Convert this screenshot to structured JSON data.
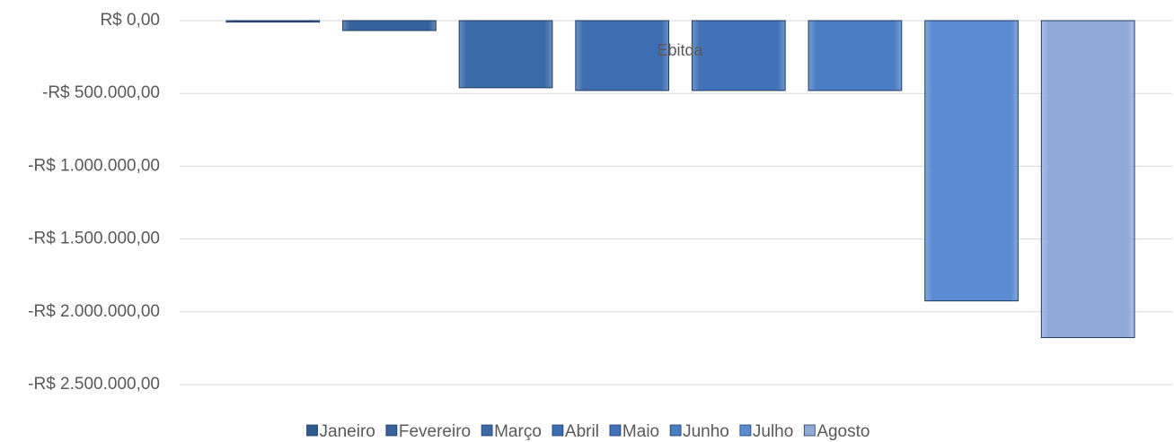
{
  "chart_data": {
    "type": "bar",
    "title": "Ebitda",
    "categories": [
      null
    ],
    "series": [
      {
        "name": "Janeiro",
        "color": "#2d5a90",
        "values": [
          -10000
        ]
      },
      {
        "name": "Fevereiro",
        "color": "#33629c",
        "values": [
          -68000
        ]
      },
      {
        "name": "Março",
        "color": "#3a69a8",
        "values": [
          -461000
        ]
      },
      {
        "name": "Abril",
        "color": "#3d6eb1",
        "values": [
          -480000
        ]
      },
      {
        "name": "Maio",
        "color": "#4172b8",
        "values": [
          -480000
        ]
      },
      {
        "name": "Junho",
        "color": "#4a7ec4",
        "values": [
          -480000
        ]
      },
      {
        "name": "Julho",
        "color": "#5b8cd2",
        "values": [
          -1925000
        ]
      },
      {
        "name": "Agosto",
        "color": "#8faad9",
        "values": [
          -2177000
        ]
      }
    ],
    "ylim": [
      -2500000,
      0
    ],
    "yticks": [
      {
        "value": 0,
        "label": "R$ 0,00"
      },
      {
        "value": -500000,
        "label": "-R$ 500.000,00"
      },
      {
        "value": -1000000,
        "label": "-R$ 1.000.000,00"
      },
      {
        "value": -1500000,
        "label": "-R$ 1.500.000,00"
      },
      {
        "value": -2000000,
        "label": "-R$ 2.000.000,00"
      },
      {
        "value": -2500000,
        "label": "-R$ 2.500.000,00"
      }
    ],
    "grid": true,
    "legend": "bottom"
  }
}
